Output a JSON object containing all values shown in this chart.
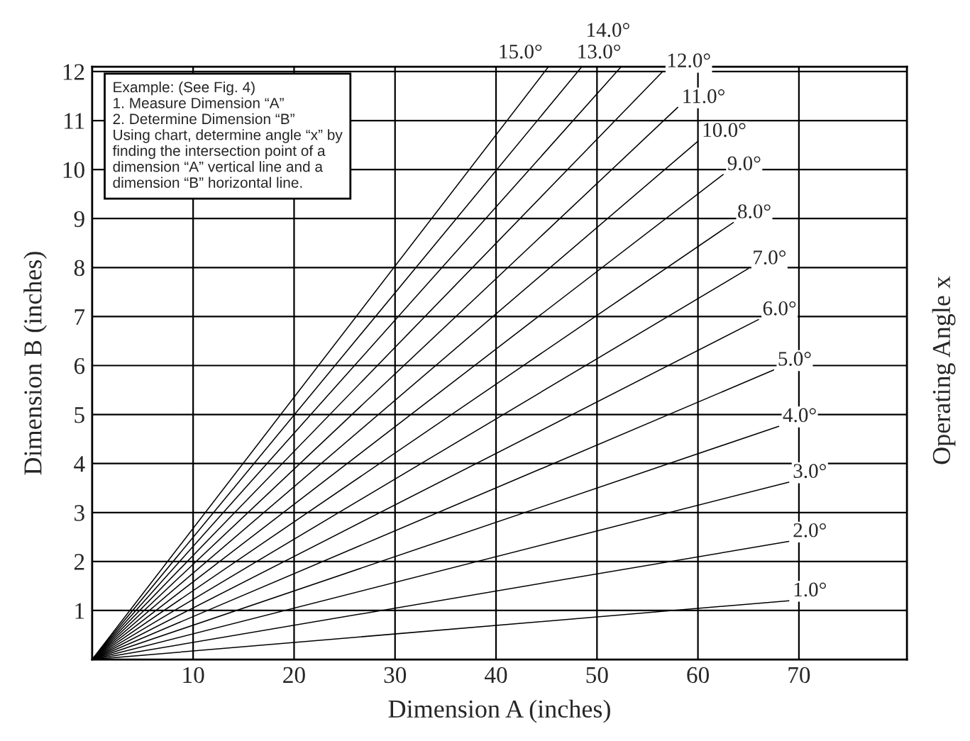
{
  "chart_data": {
    "type": "line",
    "xlabel": "Dimension A (inches)",
    "ylabel": "Dimension B (inches)",
    "y2label": "Operating Angle x",
    "xlim": [
      0,
      80.7
    ],
    "ylim": [
      0,
      12.1
    ],
    "xticks": [
      10,
      20,
      30,
      40,
      50,
      60,
      70
    ],
    "yticks": [
      1,
      2,
      3,
      4,
      5,
      6,
      7,
      8,
      9,
      10,
      11,
      12
    ],
    "grid": true,
    "legend": false,
    "marker": "none",
    "line_style": "solid",
    "annotations": [
      "Example: (See Fig. 4)\n1. Measure Dimension “A”\n2. Determine Dimension “B”\nUsing chart, determine angle “x” by\nfinding the intersection point of a\ndimension “A” vertical line and a\ndimension “B” horizontal line."
    ],
    "series": [
      {
        "name": "1.0°",
        "color": "#000000",
        "x": [
          0,
          69
        ],
        "values": [
          0,
          1.2
        ]
      },
      {
        "name": "2.0°",
        "color": "#000000",
        "x": [
          0,
          69
        ],
        "values": [
          0,
          2.41
        ]
      },
      {
        "name": "3.0°",
        "color": "#000000",
        "x": [
          0,
          69
        ],
        "values": [
          0,
          3.62
        ]
      },
      {
        "name": "4.0°",
        "color": "#000000",
        "x": [
          0,
          68
        ],
        "values": [
          0,
          4.76
        ]
      },
      {
        "name": "5.0°",
        "color": "#000000",
        "x": [
          0,
          67.5
        ],
        "values": [
          0,
          5.91
        ]
      },
      {
        "name": "6.0°",
        "color": "#000000",
        "x": [
          0,
          66
        ],
        "values": [
          0,
          6.94
        ]
      },
      {
        "name": "7.0°",
        "color": "#000000",
        "x": [
          0,
          65
        ],
        "values": [
          0,
          7.98
        ]
      },
      {
        "name": "8.0°",
        "color": "#000000",
        "x": [
          0,
          63.5
        ],
        "values": [
          0,
          8.92
        ]
      },
      {
        "name": "9.0°",
        "color": "#000000",
        "x": [
          0,
          62.5
        ],
        "values": [
          0,
          9.9
        ]
      },
      {
        "name": "10.0°",
        "color": "#000000",
        "x": [
          0,
          60
        ],
        "values": [
          0,
          10.58
        ]
      },
      {
        "name": "11.0°",
        "color": "#000000",
        "x": [
          0,
          58
        ],
        "values": [
          0,
          11.27
        ]
      },
      {
        "name": "12.0°",
        "color": "#000000",
        "x": [
          0,
          56.5
        ],
        "values": [
          0,
          12.0
        ]
      },
      {
        "name": "13.0°",
        "color": "#000000",
        "x": [
          0,
          52.4
        ],
        "values": [
          0,
          12.1
        ]
      },
      {
        "name": "14.0°",
        "color": "#000000",
        "x": [
          0,
          48.5
        ],
        "values": [
          0,
          12.1
        ]
      },
      {
        "name": "15.0°",
        "color": "#000000",
        "x": [
          0,
          45.2
        ],
        "values": [
          0,
          12.1
        ]
      }
    ]
  }
}
